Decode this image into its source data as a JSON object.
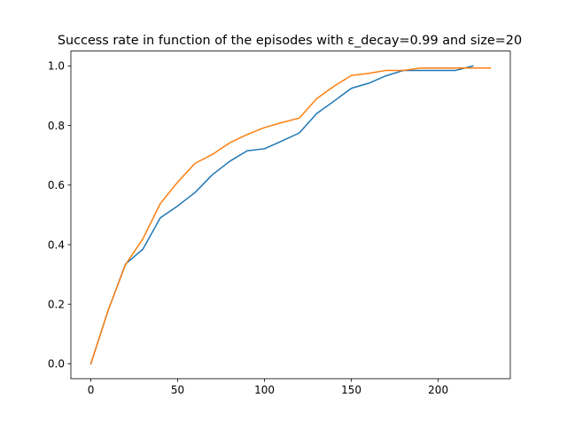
{
  "chart_data": {
    "type": "line",
    "title": "Success rate in function of the episodes with ε_decay=0.99 and size=20",
    "xlabel": "",
    "ylabel": "",
    "xlim": [
      -11.5,
      241.5
    ],
    "ylim": [
      -0.05,
      1.05
    ],
    "xticks": [
      0,
      50,
      100,
      150,
      200
    ],
    "yticks": [
      0.0,
      0.2,
      0.4,
      0.6,
      0.8,
      1.0
    ],
    "xtick_labels": [
      "0",
      "50",
      "100",
      "150",
      "200"
    ],
    "ytick_labels": [
      "0.0",
      "0.2",
      "0.4",
      "0.6",
      "0.8",
      "1.0"
    ],
    "grid": false,
    "legend": "none",
    "series": [
      {
        "color": "#1f77b4",
        "x": [
          0,
          10,
          20,
          30,
          40,
          50,
          60,
          70,
          80,
          90,
          100,
          110,
          120,
          130,
          140,
          150,
          160,
          170,
          180,
          190,
          200,
          210,
          220
        ],
        "y": [
          0.0,
          0.18,
          0.335,
          0.385,
          0.49,
          0.53,
          0.575,
          0.635,
          0.68,
          0.715,
          0.722,
          0.748,
          0.775,
          0.84,
          0.882,
          0.925,
          0.942,
          0.967,
          0.985,
          0.985,
          0.985,
          0.985,
          1.0
        ]
      },
      {
        "color": "#ff7f0e",
        "x": [
          0,
          10,
          20,
          30,
          40,
          50,
          60,
          70,
          80,
          90,
          100,
          110,
          120,
          130,
          140,
          150,
          160,
          170,
          180,
          190,
          200,
          210,
          220,
          230
        ],
        "y": [
          0.0,
          0.18,
          0.333,
          0.42,
          0.538,
          0.61,
          0.673,
          0.703,
          0.742,
          0.77,
          0.793,
          0.81,
          0.825,
          0.89,
          0.932,
          0.968,
          0.975,
          0.985,
          0.985,
          0.993,
          0.993,
          0.993,
          0.993,
          0.993
        ]
      }
    ]
  }
}
